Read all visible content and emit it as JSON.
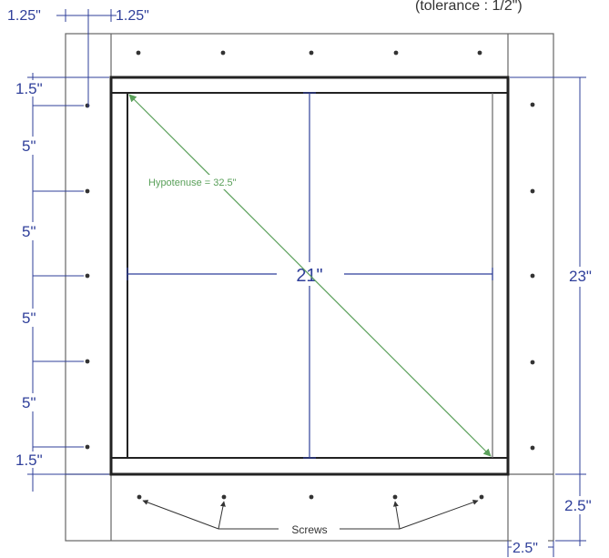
{
  "diagram": {
    "dimensions": {
      "left_strip_width": "1.25\"",
      "frame_strip_width": "1.25\"",
      "top_offset": "1.5\"",
      "spacing_1": "5\"",
      "spacing_2": "5\"",
      "spacing_3": "5\"",
      "spacing_4": "5\"",
      "bottom_offset": "1.5\"",
      "inner_width": "21\"",
      "height": "23\"",
      "bottom_margin_height": "2.5\"",
      "right_margin_width": "2.5\""
    },
    "tolerance_note": "(tolerance : 1/2\")",
    "hypotenuse_label": "Hypotenuse = 32.5\"",
    "screws_label": "Screws",
    "colors": {
      "dimension": "#2f3f9a",
      "hypotenuse": "#5aa05a",
      "outline": "#555555",
      "frame": "#222222"
    }
  }
}
